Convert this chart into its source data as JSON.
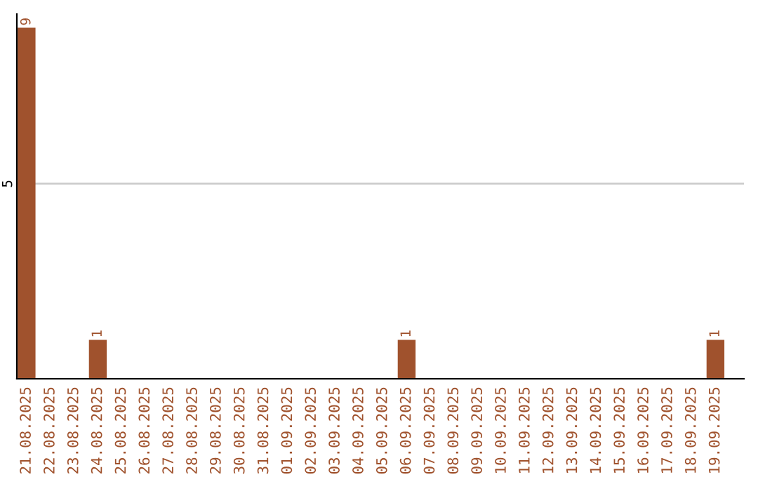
{
  "chart_data": {
    "type": "bar",
    "categories": [
      "21.08.2025",
      "22.08.2025",
      "23.08.2025",
      "24.08.2025",
      "25.08.2025",
      "26.08.2025",
      "27.08.2025",
      "28.08.2025",
      "29.08.2025",
      "30.08.2025",
      "31.08.2025",
      "01.09.2025",
      "02.09.2025",
      "03.09.2025",
      "04.09.2025",
      "05.09.2025",
      "06.09.2025",
      "07.09.2025",
      "08.09.2025",
      "09.09.2025",
      "10.09.2025",
      "11.09.2025",
      "12.09.2025",
      "13.09.2025",
      "14.09.2025",
      "15.09.2025",
      "16.09.2025",
      "17.09.2025",
      "18.09.2025",
      "19.09.2025"
    ],
    "values": [
      9,
      0,
      0,
      1,
      0,
      0,
      0,
      0,
      0,
      0,
      0,
      0,
      0,
      0,
      0,
      0,
      1,
      0,
      0,
      0,
      0,
      0,
      0,
      0,
      0,
      0,
      0,
      0,
      0,
      1
    ],
    "value_labels": [
      "9",
      null,
      null,
      "1",
      null,
      null,
      null,
      null,
      null,
      null,
      null,
      null,
      null,
      null,
      null,
      null,
      "1",
      null,
      null,
      null,
      null,
      null,
      null,
      null,
      null,
      null,
      null,
      null,
      null,
      "1"
    ],
    "color": "#a0522d",
    "ylim": [
      0,
      9.35
    ],
    "yticks": [
      5
    ],
    "grid": "y"
  }
}
